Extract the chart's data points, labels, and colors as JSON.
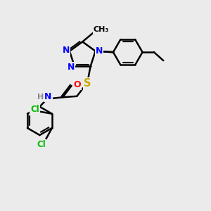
{
  "bg_color": "#ebebeb",
  "bond_color": "#000000",
  "bond_width": 1.8,
  "atom_colors": {
    "N": "#0000ff",
    "S": "#ccaa00",
    "O": "#ff0000",
    "Cl": "#00bb00",
    "H": "#888888",
    "C": "#000000"
  },
  "font_size": 8.5
}
